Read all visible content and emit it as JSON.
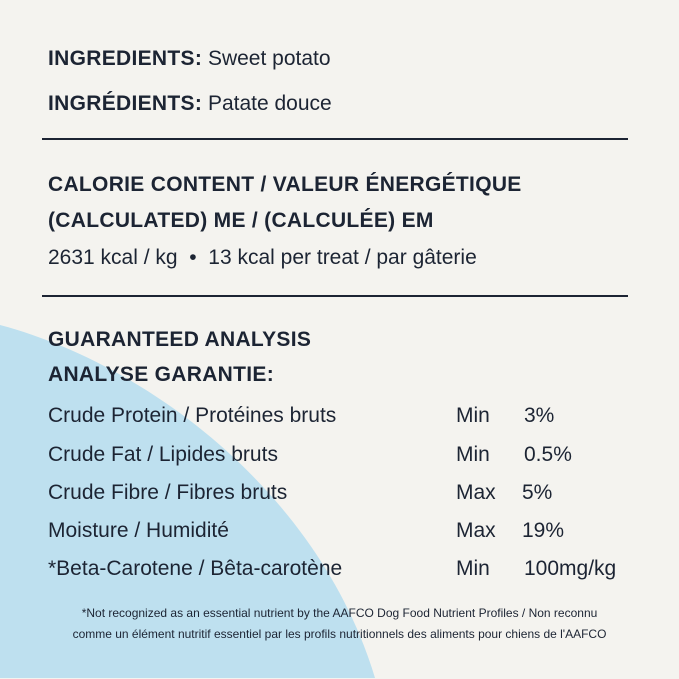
{
  "ingredients": {
    "en_label": "INGREDIENTS:",
    "en_value": "Sweet potato",
    "fr_label": "INGRÉDIENTS:",
    "fr_value": "Patate douce"
  },
  "calorie": {
    "title_1": "CALORIE CONTENT / VALEUR ÉNERGÉTIQUE",
    "title_2": "(CALCULATED) ME / (CALCULÉE) EM",
    "per_kg": "2631 kcal / kg",
    "bullet": "•",
    "per_treat": "13 kcal per treat / par gâterie"
  },
  "analysis": {
    "title_1": "GUARANTEED ANALYSIS",
    "title_2": "ANALYSE GARANTIE:",
    "rows": [
      {
        "name": "Crude Protein / Protéines bruts",
        "qualifier": "Min",
        "value": "3%"
      },
      {
        "name": "Crude Fat / Lipides bruts",
        "qualifier": "Min",
        "value": "0.5%"
      },
      {
        "name": "Crude Fibre / Fibres bruts",
        "qualifier": "Max",
        "value": "5%"
      },
      {
        "name": "Moisture / Humidité",
        "qualifier": "Max",
        "value": "19%"
      },
      {
        "name": "*Beta-Carotene / Bêta-carotène",
        "qualifier": "Min",
        "value": "100mg/kg"
      }
    ]
  },
  "footnote": {
    "line_1": "*Not recognized as an essential nutrient by the AAFCO Dog Food Nutrient Profiles / Non reconnu",
    "line_2": "comme un élément nutritif essentiel par les profils nutritionnels des aliments pour chiens de l'AAFCO"
  },
  "colors": {
    "background": "#f4f3ef",
    "accent_blue": "#bee0ef",
    "text": "#1c2433"
  }
}
